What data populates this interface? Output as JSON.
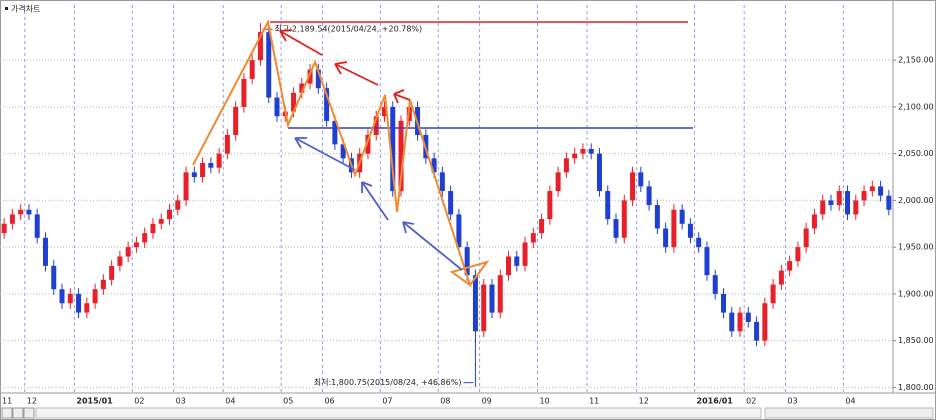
{
  "chart_data": {
    "type": "candlestick",
    "title": "가격차트",
    "categories": [
      "11",
      null,
      null,
      "12",
      null,
      null,
      null,
      null,
      null,
      "2015/01",
      null,
      null,
      null,
      null,
      null,
      null,
      "02",
      null,
      null,
      null,
      null,
      "03",
      null,
      null,
      null,
      null,
      null,
      "04",
      null,
      null,
      null,
      null,
      null,
      null,
      "05",
      null,
      null,
      null,
      null,
      "06",
      null,
      null,
      null,
      null,
      null,
      null,
      "07",
      null,
      null,
      null,
      null,
      null,
      null,
      "08",
      null,
      null,
      null,
      null,
      "09",
      null,
      null,
      null,
      null,
      null,
      null,
      "10",
      null,
      null,
      null,
      null,
      null,
      "11",
      null,
      null,
      null,
      null,
      null,
      "12",
      null,
      null,
      null,
      null,
      null,
      null,
      "2016/01",
      null,
      null,
      null,
      null,
      null,
      "02",
      null,
      null,
      null,
      null,
      "03",
      null,
      null,
      null,
      null,
      null,
      null,
      "04",
      null,
      null,
      null,
      null,
      null
    ],
    "open": [
      1965,
      1975,
      1985,
      1990,
      1985,
      1960,
      1930,
      1905,
      1890,
      1900,
      1880,
      1890,
      1905,
      1915,
      1930,
      1940,
      1950,
      1955,
      1965,
      1975,
      1980,
      1990,
      2000,
      2030,
      2025,
      2040,
      2035,
      2050,
      2070,
      2100,
      2130,
      2150,
      2180,
      2110,
      2090,
      2095,
      2115,
      2125,
      2140,
      2120,
      2085,
      2060,
      2045,
      2030,
      2050,
      2070,
      2090,
      2100,
      2010,
      2085,
      2100,
      2070,
      2045,
      2030,
      2010,
      1985,
      1950,
      1920,
      1860,
      1910,
      1880,
      1920,
      1940,
      1930,
      1955,
      1965,
      1980,
      2010,
      2030,
      2045,
      2050,
      2055,
      2050,
      2010,
      1980,
      1960,
      2000,
      2030,
      2015,
      1995,
      1970,
      1950,
      1990,
      1975,
      1960,
      1950,
      1920,
      1900,
      1880,
      1860,
      1880,
      1870,
      1850,
      1890,
      1910,
      1925,
      1935,
      1950,
      1970,
      1985,
      2000,
      1995,
      2010,
      1985,
      2000,
      2010,
      2015,
      2005
    ],
    "high": [
      1981,
      1991,
      1996,
      1996,
      1991,
      1966,
      1936,
      1911,
      1906,
      1906,
      1896,
      1911,
      1921,
      1936,
      1946,
      1956,
      1961,
      1971,
      1981,
      1986,
      1996,
      2006,
      2036,
      2036,
      2046,
      2046,
      2056,
      2076,
      2106,
      2136,
      2156,
      2189.54,
      2186,
      2116,
      2101,
      2121,
      2131,
      2146,
      2146,
      2126,
      2091,
      2066,
      2051,
      2056,
      2076,
      2096,
      2106,
      2106,
      2091,
      2106,
      2106,
      2076,
      2051,
      2036,
      2016,
      1991,
      1956,
      1926,
      1916,
      1916,
      1926,
      1946,
      1946,
      1961,
      1971,
      1986,
      2016,
      2036,
      2051,
      2056,
      2061,
      2061,
      2056,
      2016,
      1986,
      2006,
      2036,
      2036,
      2021,
      2001,
      1976,
      1996,
      1996,
      1981,
      1966,
      1956,
      1926,
      1906,
      1886,
      1886,
      1886,
      1876,
      1896,
      1916,
      1931,
      1941,
      1956,
      1976,
      1991,
      2006,
      2006,
      2016,
      2016,
      2006,
      2016,
      2021,
      2021,
      2011
    ],
    "low": [
      1959,
      1969,
      1979,
      1979,
      1954,
      1924,
      1899,
      1884,
      1884,
      1874,
      1874,
      1884,
      1899,
      1909,
      1924,
      1934,
      1944,
      1949,
      1959,
      1969,
      1974,
      1984,
      1994,
      2019,
      2019,
      2029,
      2029,
      2044,
      2064,
      2094,
      2124,
      2144,
      2104,
      2084,
      2084,
      2089,
      2109,
      2119,
      2114,
      2079,
      2054,
      2039,
      2024,
      2024,
      2044,
      2064,
      2084,
      2004,
      2004,
      2079,
      2064,
      2039,
      2024,
      2004,
      1979,
      1944,
      1914,
      1800.75,
      1854,
      1874,
      1874,
      1914,
      1924,
      1924,
      1949,
      1959,
      1974,
      2004,
      2024,
      2039,
      2044,
      2044,
      2004,
      1974,
      1954,
      1954,
      1994,
      2009,
      1989,
      1964,
      1944,
      1944,
      1969,
      1954,
      1944,
      1914,
      1894,
      1874,
      1854,
      1854,
      1864,
      1844,
      1844,
      1884,
      1904,
      1919,
      1929,
      1944,
      1964,
      1979,
      1989,
      1989,
      1979,
      1979,
      1994,
      2004,
      1999,
      1984
    ],
    "close": [
      1975,
      1985,
      1990,
      1985,
      1960,
      1930,
      1905,
      1890,
      1900,
      1880,
      1890,
      1905,
      1915,
      1930,
      1940,
      1950,
      1955,
      1965,
      1975,
      1980,
      1990,
      2000,
      2030,
      2025,
      2040,
      2035,
      2050,
      2070,
      2100,
      2130,
      2150,
      2180,
      2110,
      2090,
      2095,
      2115,
      2125,
      2140,
      2120,
      2085,
      2060,
      2045,
      2030,
      2050,
      2070,
      2090,
      2100,
      2010,
      2085,
      2100,
      2070,
      2045,
      2030,
      2010,
      1985,
      1950,
      1920,
      1860,
      1910,
      1880,
      1920,
      1940,
      1930,
      1955,
      1965,
      1980,
      2010,
      2030,
      2045,
      2050,
      2055,
      2050,
      2010,
      1980,
      1960,
      2000,
      2030,
      2015,
      1995,
      1970,
      1950,
      1990,
      1975,
      1960,
      1950,
      1920,
      1900,
      1880,
      1860,
      1880,
      1870,
      1850,
      1890,
      1910,
      1925,
      1935,
      1950,
      1970,
      1985,
      2000,
      1995,
      2010,
      1985,
      2000,
      2010,
      2015,
      2005,
      1990
    ],
    "up_color": "#e8202a",
    "down_color": "#1f3fd0",
    "ylim": [
      1794,
      2209
    ],
    "yticks": [
      {
        "value": 1800,
        "label": "1,800.00"
      },
      {
        "value": 1850,
        "label": "1,850.00"
      },
      {
        "value": 1900,
        "label": "1,900.00"
      },
      {
        "value": 1950,
        "label": "1,950.00"
      },
      {
        "value": 2000,
        "label": "2,000.00"
      },
      {
        "value": 2050,
        "label": "2,050.00"
      },
      {
        "value": 2100,
        "label": "2,100.00"
      },
      {
        "value": 2150,
        "label": "2,150.00"
      }
    ],
    "grid": true,
    "max_label": "최고:2,189.54(2015/04/24, +20.78%)",
    "min_label": "최저:1,800.75(2015/08/24, +46.86%)"
  }
}
